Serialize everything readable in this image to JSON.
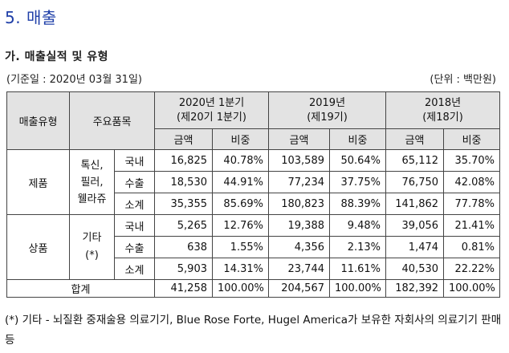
{
  "section_title": "5. 매출",
  "subsection_title": "가. 매출실적 및 유형",
  "base_date": "(기준일 : 2020년 03월 31일)",
  "unit": "(단위 : 백만원)",
  "table": {
    "headers": {
      "sales_type": "매출유형",
      "main_products": "주요품목",
      "periods": [
        {
          "line1": "2020년 1분기",
          "line2": "(제20기 1분기)"
        },
        {
          "line1": "2019년",
          "line2": "(제19기)"
        },
        {
          "line1": "2018년",
          "line2": "(제18기)"
        }
      ],
      "amount": "금액",
      "ratio": "비중"
    },
    "groups": [
      {
        "type": "제품",
        "products": [
          "톡신,",
          "필러,",
          "웰라쥬"
        ],
        "rows": [
          {
            "sub": "국내",
            "values": [
              "16,825",
              "40.78%",
              "103,589",
              "50.64%",
              "65,112",
              "35.70%"
            ]
          },
          {
            "sub": "수출",
            "values": [
              "18,530",
              "44.91%",
              "77,234",
              "37.75%",
              "76,750",
              "42.08%"
            ]
          },
          {
            "sub": "소계",
            "values": [
              "35,355",
              "85.69%",
              "180,823",
              "88.39%",
              "141,862",
              "77.78%"
            ]
          }
        ]
      },
      {
        "type": "상품",
        "products": [
          "기타",
          "(*)"
        ],
        "rows": [
          {
            "sub": "국내",
            "values": [
              "5,265",
              "12.76%",
              "19,388",
              "9.48%",
              "39,056",
              "21.41%"
            ]
          },
          {
            "sub": "수출",
            "values": [
              "638",
              "1.55%",
              "4,356",
              "2.13%",
              "1,474",
              "0.81%"
            ]
          },
          {
            "sub": "소계",
            "values": [
              "5,903",
              "14.31%",
              "23,744",
              "11.61%",
              "40,530",
              "22.22%"
            ]
          }
        ]
      }
    ],
    "total": {
      "label": "합계",
      "values": [
        "41,258",
        "100.00%",
        "204,567",
        "100.00%",
        "182,392",
        "100.00%"
      ]
    }
  },
  "footnote": "(*) 기타 - 뇌질환 중재술용 의료기기, Blue Rose Forte, Hugel America가 보유한 자회사의 의료기기 판매 등"
}
